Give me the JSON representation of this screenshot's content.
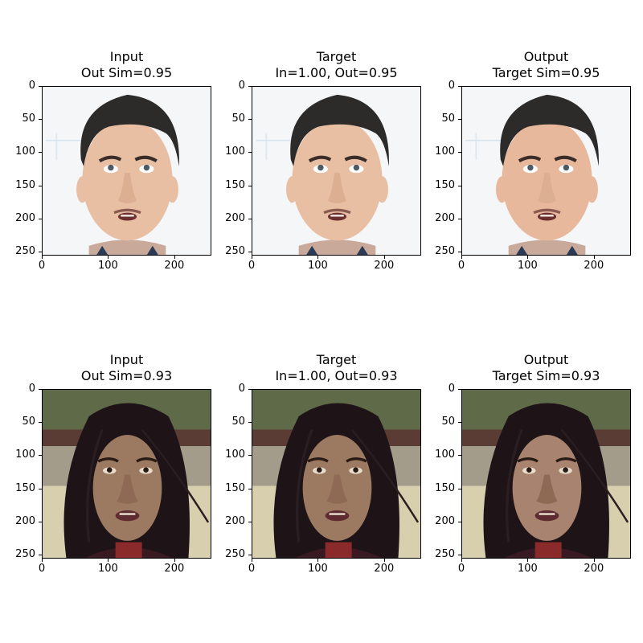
{
  "figure": {
    "rows": [
      {
        "subject": "man",
        "panels": [
          {
            "title_line1": "Input",
            "title_line2": "Out Sim=0.95"
          },
          {
            "title_line1": "Target",
            "title_line2": "In=1.00, Out=0.95"
          },
          {
            "title_line1": "Output",
            "title_line2": "Target Sim=0.95"
          }
        ]
      },
      {
        "subject": "woman",
        "panels": [
          {
            "title_line1": "Input",
            "title_line2": "Out Sim=0.93"
          },
          {
            "title_line1": "Target",
            "title_line2": "In=1.00, Out=0.93"
          },
          {
            "title_line1": "Output",
            "title_line2": "Target Sim=0.93"
          }
        ]
      }
    ],
    "y_ticks": [
      "0",
      "50",
      "100",
      "150",
      "200",
      "250"
    ],
    "x_ticks": [
      "0",
      "100",
      "200"
    ],
    "colors": {
      "man_background": "#f4f6f8",
      "man_skin": "#e9bfa4",
      "man_hair": "#2d2a2a",
      "woman_background": "#8c8672",
      "woman_skin": "#9c7a62",
      "woman_hair": "#1e1418"
    }
  }
}
